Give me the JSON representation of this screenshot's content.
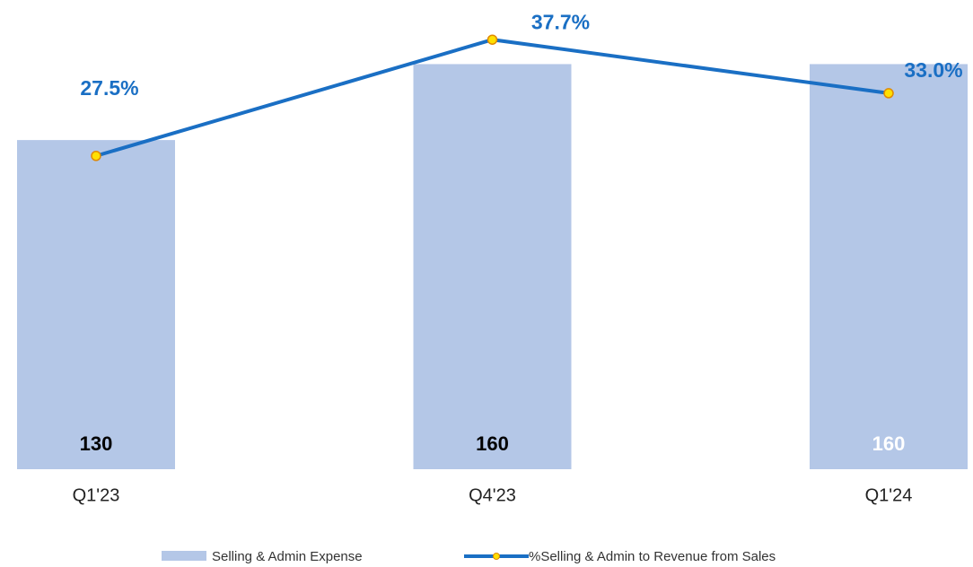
{
  "chart_data": {
    "type": "bar_line",
    "categories": [
      "Q1'23",
      "Q4'23",
      "Q1'24"
    ],
    "series": [
      {
        "name": "Selling & Admin Expense",
        "type": "bar",
        "color": "#b4c7e7",
        "values": [
          130,
          160,
          160
        ],
        "label_colors": [
          "#000000",
          "#000000",
          "#ffffff"
        ]
      },
      {
        "name": "%Selling & Admin to Revenue from Sales",
        "type": "line",
        "axis": "y2",
        "color": "#1a6fc4",
        "marker_color": "#ffe000",
        "label_color": "#1a6fc4",
        "values": [
          27.5,
          37.7,
          33.0
        ],
        "value_labels": [
          "27.5%",
          "37.7%",
          "33.0%"
        ]
      }
    ],
    "ylim": [
      0,
      180
    ],
    "y2lim": [
      0,
      40
    ],
    "legend": "bottom"
  }
}
